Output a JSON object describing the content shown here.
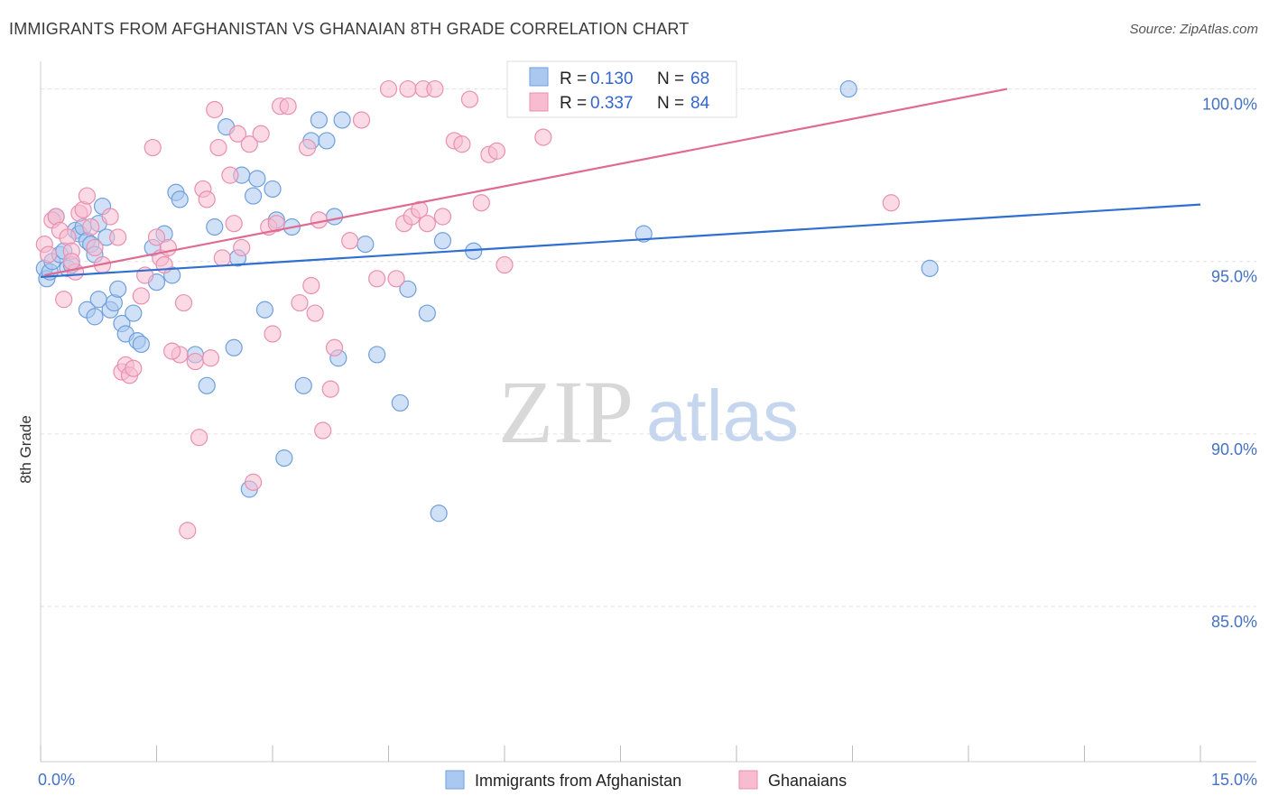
{
  "header": {
    "title": "IMMIGRANTS FROM AFGHANISTAN VS GHANAIAN 8TH GRADE CORRELATION CHART",
    "source": "Source: ZipAtlas.com"
  },
  "watermark": {
    "zip": "ZIP",
    "atlas": "atlas"
  },
  "legend": {
    "r_label": "R =",
    "n_label": "N =",
    "series": [
      {
        "r": "0.130",
        "n": "68"
      },
      {
        "r": "0.337",
        "n": "84"
      }
    ]
  },
  "bottom_legend": [
    "Immigrants from Afghanistan",
    "Ghanaians"
  ],
  "colors": {
    "afghan_fill": "#aac8f0",
    "afghan_stroke": "#6f9fdc",
    "afghan_line": "#2f6fcf",
    "ghana_fill": "#f7bcd0",
    "ghana_stroke": "#e98fb0",
    "ghana_line": "#e06a92"
  },
  "chart_data": {
    "type": "scatter",
    "title": "IMMIGRANTS FROM AFGHANISTAN VS GHANAIAN 8TH GRADE CORRELATION CHART",
    "xlabel": "",
    "ylabel": "8th Grade",
    "xlim": [
      0,
      15
    ],
    "ylim": [
      80.5,
      100.8
    ],
    "x_tick_labels": [
      "0.0%",
      "15.0%"
    ],
    "y_ticks": [
      85,
      90,
      95,
      100
    ],
    "y_tick_labels": [
      "85.0%",
      "90.0%",
      "95.0%",
      "100.0%"
    ],
    "grid": true,
    "legend_position": "top-center",
    "series": [
      {
        "name": "Immigrants from Afghanistan",
        "r": 0.13,
        "n": 68,
        "trend": {
          "x": [
            0,
            15
          ],
          "y": [
            94.55,
            96.65
          ]
        },
        "points": [
          [
            0.05,
            94.8
          ],
          [
            0.08,
            94.5
          ],
          [
            0.12,
            94.7
          ],
          [
            0.15,
            95.0
          ],
          [
            0.2,
            96.3
          ],
          [
            0.25,
            95.2
          ],
          [
            0.3,
            95.3
          ],
          [
            0.35,
            94.8
          ],
          [
            0.4,
            94.9
          ],
          [
            0.45,
            95.9
          ],
          [
            0.5,
            95.8
          ],
          [
            0.55,
            96.0
          ],
          [
            0.6,
            95.6
          ],
          [
            0.65,
            95.5
          ],
          [
            0.7,
            95.2
          ],
          [
            0.75,
            96.1
          ],
          [
            0.8,
            96.6
          ],
          [
            0.85,
            95.7
          ],
          [
            0.6,
            93.6
          ],
          [
            0.7,
            93.4
          ],
          [
            0.75,
            93.9
          ],
          [
            0.9,
            93.6
          ],
          [
            0.95,
            93.8
          ],
          [
            1.0,
            94.2
          ],
          [
            1.05,
            93.2
          ],
          [
            1.1,
            92.9
          ],
          [
            1.2,
            93.5
          ],
          [
            1.25,
            92.7
          ],
          [
            1.3,
            92.6
          ],
          [
            1.5,
            94.4
          ],
          [
            1.45,
            95.4
          ],
          [
            1.6,
            95.8
          ],
          [
            1.7,
            94.6
          ],
          [
            1.75,
            97.0
          ],
          [
            1.8,
            96.8
          ],
          [
            2.0,
            92.3
          ],
          [
            2.15,
            91.4
          ],
          [
            2.25,
            96.0
          ],
          [
            2.4,
            98.9
          ],
          [
            2.5,
            92.5
          ],
          [
            2.55,
            95.1
          ],
          [
            2.6,
            97.5
          ],
          [
            2.7,
            88.4
          ],
          [
            2.75,
            96.9
          ],
          [
            2.8,
            97.4
          ],
          [
            2.9,
            93.6
          ],
          [
            3.0,
            97.1
          ],
          [
            3.05,
            96.2
          ],
          [
            3.15,
            89.3
          ],
          [
            3.25,
            96.0
          ],
          [
            3.4,
            91.4
          ],
          [
            3.5,
            98.5
          ],
          [
            3.6,
            99.1
          ],
          [
            3.7,
            98.5
          ],
          [
            3.8,
            96.3
          ],
          [
            3.85,
            92.2
          ],
          [
            3.9,
            99.1
          ],
          [
            4.2,
            95.5
          ],
          [
            4.35,
            92.3
          ],
          [
            4.65,
            90.9
          ],
          [
            4.75,
            94.2
          ],
          [
            5.0,
            93.5
          ],
          [
            5.15,
            87.7
          ],
          [
            5.2,
            95.6
          ],
          [
            5.6,
            95.3
          ],
          [
            7.8,
            95.8
          ],
          [
            10.45,
            100.0
          ],
          [
            11.5,
            94.8
          ]
        ]
      },
      {
        "name": "Ghanaians",
        "r": 0.337,
        "n": 84,
        "trend": {
          "x": [
            0.05,
            12.5
          ],
          "y": [
            94.6,
            100.0
          ]
        },
        "points": [
          [
            0.05,
            95.5
          ],
          [
            0.1,
            95.2
          ],
          [
            0.15,
            96.2
          ],
          [
            0.2,
            96.3
          ],
          [
            0.25,
            95.9
          ],
          [
            0.3,
            93.9
          ],
          [
            0.35,
            95.7
          ],
          [
            0.4,
            95.3
          ],
          [
            0.45,
            94.7
          ],
          [
            0.5,
            96.4
          ],
          [
            0.55,
            96.5
          ],
          [
            0.6,
            96.9
          ],
          [
            0.65,
            96.0
          ],
          [
            0.7,
            95.4
          ],
          [
            0.8,
            94.9
          ],
          [
            0.9,
            96.3
          ],
          [
            1.0,
            95.7
          ],
          [
            1.05,
            91.8
          ],
          [
            1.1,
            92.0
          ],
          [
            1.15,
            91.7
          ],
          [
            1.2,
            91.9
          ],
          [
            1.3,
            94.0
          ],
          [
            1.35,
            94.6
          ],
          [
            1.45,
            98.3
          ],
          [
            1.5,
            95.7
          ],
          [
            1.55,
            95.1
          ],
          [
            1.6,
            94.9
          ],
          [
            1.65,
            95.4
          ],
          [
            1.8,
            92.3
          ],
          [
            1.85,
            93.8
          ],
          [
            1.9,
            87.2
          ],
          [
            2.0,
            92.1
          ],
          [
            2.05,
            89.9
          ],
          [
            2.1,
            97.1
          ],
          [
            2.15,
            96.8
          ],
          [
            2.2,
            92.2
          ],
          [
            2.25,
            99.4
          ],
          [
            2.3,
            98.3
          ],
          [
            2.35,
            95.1
          ],
          [
            2.45,
            97.5
          ],
          [
            2.5,
            96.1
          ],
          [
            2.55,
            98.7
          ],
          [
            2.6,
            95.4
          ],
          [
            2.7,
            98.4
          ],
          [
            2.75,
            88.6
          ],
          [
            2.85,
            98.7
          ],
          [
            2.95,
            96.0
          ],
          [
            3.0,
            92.9
          ],
          [
            3.05,
            96.1
          ],
          [
            3.1,
            99.5
          ],
          [
            3.2,
            99.5
          ],
          [
            3.35,
            93.8
          ],
          [
            3.45,
            98.3
          ],
          [
            3.5,
            94.3
          ],
          [
            3.55,
            93.5
          ],
          [
            3.6,
            96.2
          ],
          [
            3.65,
            90.1
          ],
          [
            3.75,
            91.3
          ],
          [
            3.8,
            92.5
          ],
          [
            4.0,
            95.6
          ],
          [
            4.15,
            99.1
          ],
          [
            4.35,
            94.5
          ],
          [
            4.5,
            100.0
          ],
          [
            4.6,
            94.5
          ],
          [
            4.7,
            96.1
          ],
          [
            4.75,
            100.0
          ],
          [
            4.8,
            96.3
          ],
          [
            4.9,
            96.5
          ],
          [
            4.95,
            100.0
          ],
          [
            5.0,
            96.1
          ],
          [
            5.1,
            100.0
          ],
          [
            5.2,
            96.3
          ],
          [
            5.35,
            98.5
          ],
          [
            5.45,
            98.4
          ],
          [
            5.55,
            99.7
          ],
          [
            5.7,
            96.7
          ],
          [
            5.8,
            98.1
          ],
          [
            5.9,
            98.2
          ],
          [
            6.0,
            94.9
          ],
          [
            6.3,
            99.9
          ],
          [
            6.5,
            98.6
          ],
          [
            11.0,
            96.7
          ],
          [
            0.4,
            95.0
          ],
          [
            1.7,
            92.4
          ]
        ]
      }
    ]
  }
}
